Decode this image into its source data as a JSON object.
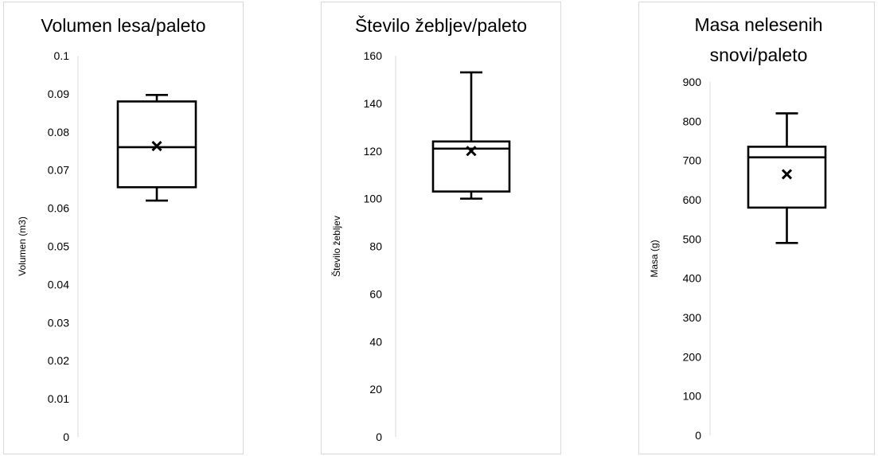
{
  "chart_data": [
    {
      "type": "box",
      "title": [
        "Volumen lesa/paleto"
      ],
      "ylabel": "Volumen (m3)",
      "ylim": [
        0,
        0.1
      ],
      "yticks": [
        "0",
        "0.01",
        "0.02",
        "0.03",
        "0.04",
        "0.05",
        "0.06",
        "0.07",
        "0.08",
        "0.09",
        "0.1"
      ],
      "box": {
        "min": 0.062,
        "q1": 0.0655,
        "median": 0.076,
        "q3": 0.088,
        "max": 0.0897,
        "mean": 0.0763
      },
      "grid": false,
      "legend": "none"
    },
    {
      "type": "box",
      "title": [
        "Število žebljev/paleto"
      ],
      "ylabel": "Število žebljev",
      "ylim": [
        0,
        160
      ],
      "yticks": [
        "0",
        "20",
        "40",
        "60",
        "80",
        "100",
        "120",
        "140",
        "160"
      ],
      "box": {
        "min": 100,
        "q1": 103,
        "median": 121,
        "q3": 124,
        "max": 153,
        "mean": 120
      },
      "grid": false,
      "legend": "none"
    },
    {
      "type": "box",
      "title": [
        "Masa nelesenih",
        "snovi/paleto"
      ],
      "ylabel": "Masa (g)",
      "ylim": [
        0,
        900
      ],
      "yticks": [
        "0",
        "100",
        "200",
        "300",
        "400",
        "500",
        "600",
        "700",
        "800",
        "900"
      ],
      "box": {
        "min": 490,
        "q1": 580,
        "median": 708,
        "q3": 735,
        "max": 820,
        "mean": 665
      },
      "grid": false,
      "legend": "none"
    }
  ]
}
